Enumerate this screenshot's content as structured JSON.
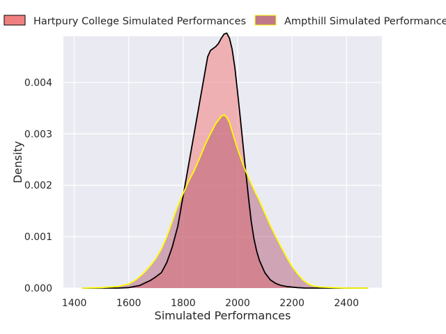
{
  "chart_data": {
    "type": "area",
    "title": "",
    "xlabel": "Simulated Performances",
    "ylabel": "Density",
    "xlim": [
      1360,
      2530
    ],
    "ylim": [
      0,
      0.0049
    ],
    "xticks": [
      1400,
      1600,
      1800,
      2000,
      2200,
      2400
    ],
    "yticks": [
      0.0,
      0.001,
      0.002,
      0.003,
      0.004
    ],
    "ytick_labels": [
      "0.000",
      "0.001",
      "0.002",
      "0.003",
      "0.004"
    ],
    "grid": true,
    "legend_position": "top",
    "series": [
      {
        "name": "Hartpury College Simulated Performances",
        "fill_color": "#f08080",
        "edge_color": "#000000",
        "x": [
          1430,
          1500,
          1560,
          1600,
          1640,
          1660,
          1680,
          1700,
          1720,
          1740,
          1760,
          1780,
          1800,
          1820,
          1840,
          1860,
          1870,
          1880,
          1890,
          1900,
          1910,
          1920,
          1930,
          1940,
          1950,
          1960,
          1970,
          1980,
          1990,
          2000,
          2010,
          2020,
          2030,
          2040,
          2050,
          2060,
          2070,
          2080,
          2100,
          2120,
          2140,
          2160,
          2180,
          2200,
          2220,
          2250,
          2300,
          2400,
          2480
        ],
        "y": [
          0,
          0,
          0,
          1e-05,
          5e-05,
          0.0001,
          0.00015,
          0.00022,
          0.0003,
          0.0005,
          0.0008,
          0.0012,
          0.0018,
          0.0024,
          0.003,
          0.0036,
          0.0039,
          0.0042,
          0.0045,
          0.00462,
          0.00466,
          0.0047,
          0.00476,
          0.00486,
          0.00494,
          0.00496,
          0.00486,
          0.00464,
          0.00428,
          0.0038,
          0.0033,
          0.00278,
          0.00226,
          0.00176,
          0.0013,
          0.00096,
          0.00072,
          0.00054,
          0.0003,
          0.00016,
          9e-05,
          5e-05,
          3e-05,
          2e-05,
          1e-05,
          0,
          0,
          0,
          0
        ]
      },
      {
        "name": "Ampthill Simulated Performances",
        "fill_color": "#b05068",
        "edge_color": "#ffff00",
        "x": [
          1430,
          1500,
          1560,
          1600,
          1620,
          1640,
          1660,
          1680,
          1700,
          1720,
          1740,
          1760,
          1780,
          1800,
          1820,
          1840,
          1860,
          1880,
          1900,
          1920,
          1940,
          1950,
          1960,
          1970,
          1980,
          2000,
          2020,
          2040,
          2060,
          2080,
          2100,
          2120,
          2140,
          2160,
          2180,
          2200,
          2220,
          2240,
          2260,
          2280,
          2300,
          2350,
          2400,
          2450,
          2480
        ],
        "y": [
          0,
          1e-05,
          3e-05,
          8e-05,
          0.00014,
          0.00022,
          0.00032,
          0.00044,
          0.00058,
          0.00076,
          0.001,
          0.0013,
          0.0016,
          0.00184,
          0.00208,
          0.00228,
          0.00252,
          0.00278,
          0.003,
          0.0032,
          0.00334,
          0.00337,
          0.00332,
          0.00322,
          0.00304,
          0.0027,
          0.0024,
          0.00215,
          0.00192,
          0.0017,
          0.00146,
          0.00122,
          0.001,
          0.0008,
          0.0006,
          0.00042,
          0.00028,
          0.00016,
          8e-05,
          4e-05,
          2e-05,
          1e-05,
          0,
          0,
          0
        ]
      }
    ]
  }
}
